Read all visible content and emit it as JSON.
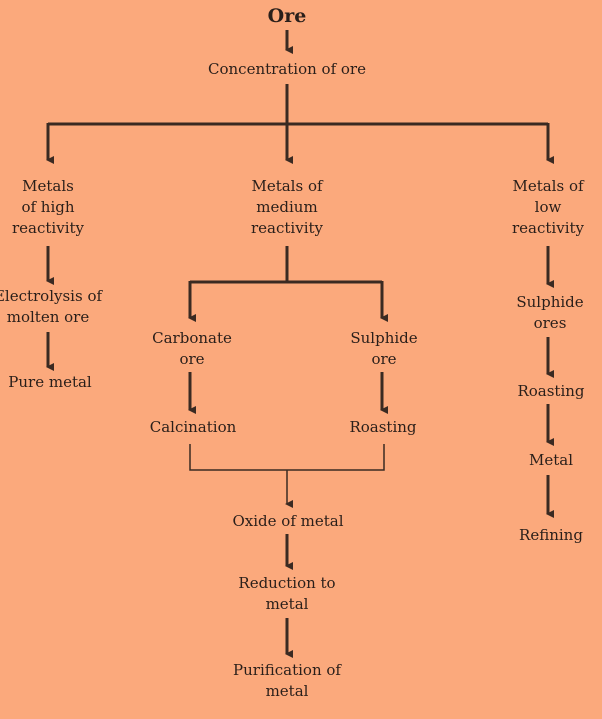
{
  "diagram": {
    "title": "Ore",
    "colors": {
      "background": "#FBA97C",
      "line": "#3a2a22",
      "text": "#2a1f1a"
    },
    "nodes": {
      "concentration": "Concentration of ore",
      "high": "Metals\nof high\nreactivity",
      "medium": "Metals of\nmedium\nreactivity",
      "low": "Metals of\nlow\nreactivity",
      "electrolysis": "Electrolysis of\nmolten ore",
      "pure_metal": "Pure metal",
      "carbonate": "Carbonate\nore",
      "sulphide_mid": "Sulphide\nore",
      "calcination": "Calcination",
      "roasting_mid": "Roasting",
      "oxide": "Oxide of metal",
      "reduction": "Reduction to\nmetal",
      "purification": "Purification of\nmetal",
      "sulphide_low": "Sulphide\nores",
      "roasting_low": "Roasting",
      "metal": "Metal",
      "refining": "Refining"
    }
  }
}
